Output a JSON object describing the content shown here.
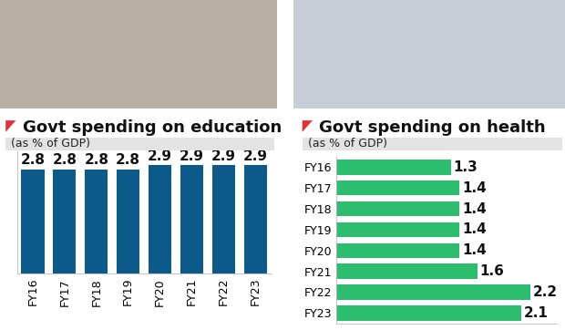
{
  "chart_data": [
    {
      "type": "bar",
      "title": "Govt spending on education",
      "subtitle": "(as % of GDP)",
      "categories": [
        "FY16",
        "FY17",
        "FY18",
        "FY19",
        "FY20",
        "FY21",
        "FY22",
        "FY23"
      ],
      "values": [
        2.8,
        2.8,
        2.8,
        2.8,
        2.9,
        2.9,
        2.9,
        2.9
      ],
      "color": "#0b5a8a",
      "ylim": [
        0,
        3.3
      ],
      "data_labels": true,
      "tick_labels": "x"
    },
    {
      "type": "bar",
      "title": "Govt spending on health",
      "subtitle": "(as % of GDP)",
      "orientation": "horizontal",
      "categories": [
        "FY16",
        "FY17",
        "FY18",
        "FY19",
        "FY20",
        "FY21",
        "FY22",
        "FY23"
      ],
      "values": [
        1.3,
        1.4,
        1.4,
        1.4,
        1.4,
        1.6,
        2.2,
        2.1
      ],
      "color": "#2dbd6e",
      "xlim": [
        0,
        2.5
      ],
      "data_labels": true,
      "tick_labels": "y"
    }
  ]
}
